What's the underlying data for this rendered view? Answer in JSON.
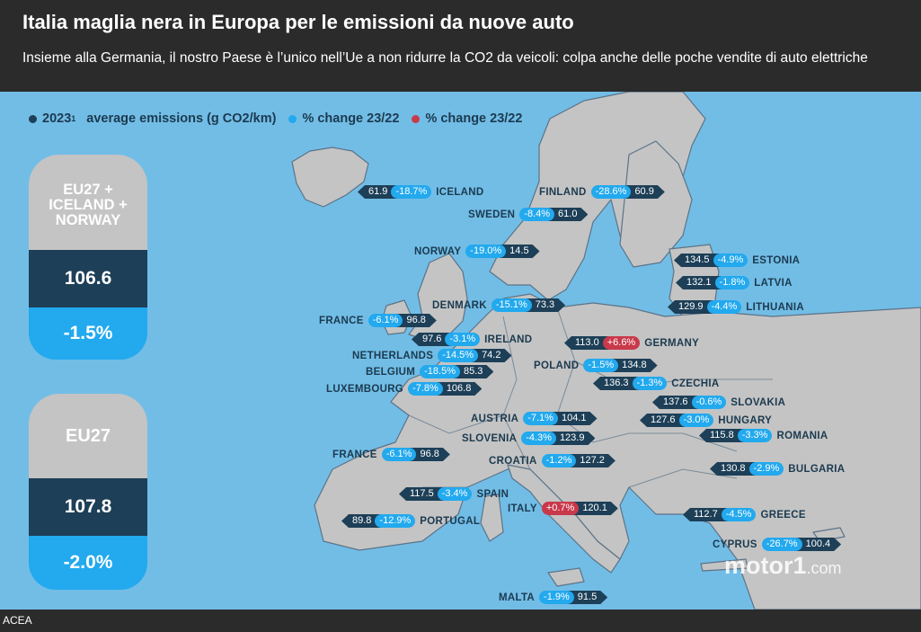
{
  "title": "Italia maglia nera in Europa per le emissioni da nuove auto",
  "subtitle": "Insieme alla Germania, il nostro Paese è l’unico nell’Ue a non ridurre la CO2 da veicoli: colpa anche delle poche vendite di auto elettriche",
  "source": "ACEA",
  "watermark": {
    "brand": "motor1",
    "suffix": ".com"
  },
  "legend": {
    "year": "2023",
    "year_sup": "1",
    "emissions": "average emissions (g CO2/km)",
    "change_decrease": "% change 23/22",
    "change_increase": "% change 23/22"
  },
  "colors": {
    "dark": "#1d3f57",
    "blue": "#22a9ee",
    "red": "#c9394a",
    "sea": "#72bde6",
    "land": "#c4c4c4"
  },
  "panels": [
    {
      "title": "EU27 + ICELAND + NORWAY",
      "value": "106.6",
      "change": "-1.5%"
    },
    {
      "title": "EU27",
      "value": "107.8",
      "change": "-2.0%"
    }
  ],
  "chart_data": {
    "type": "table",
    "columns": [
      "country",
      "avg_emissions_g_co2_km_2023",
      "pct_change_23_22"
    ],
    "rows": [
      {
        "country": "ICELAND",
        "value": "61.9",
        "change": "-18.7%",
        "dir": "down"
      },
      {
        "country": "FINLAND",
        "value": "60.9",
        "change": "-28.6%",
        "dir": "down"
      },
      {
        "country": "SWEDEN",
        "value": "61.0",
        "change": "-8.4%",
        "dir": "down"
      },
      {
        "country": "NORWAY",
        "value": "14.5",
        "change": "-19.0%",
        "dir": "down"
      },
      {
        "country": "ESTONIA",
        "value": "134.5",
        "change": "-4.9%",
        "dir": "down"
      },
      {
        "country": "LATVIA",
        "value": "132.1",
        "change": "-1.8%",
        "dir": "down"
      },
      {
        "country": "LITHUANIA",
        "value": "129.9",
        "change": "-4.4%",
        "dir": "down"
      },
      {
        "country": "DENMARK",
        "value": "73.3",
        "change": "-15.1%",
        "dir": "down"
      },
      {
        "country": "FRANCE",
        "value": "96.8",
        "change": "-6.1%",
        "dir": "down"
      },
      {
        "country": "IRELAND",
        "value": "97.6",
        "change": "-3.1%",
        "dir": "down"
      },
      {
        "country": "GERMANY",
        "value": "113.0",
        "change": "+6.6%",
        "dir": "up"
      },
      {
        "country": "NETHERLANDS",
        "value": "74.2",
        "change": "-14.5%",
        "dir": "down"
      },
      {
        "country": "BELGIUM",
        "value": "85.3",
        "change": "-18.5%",
        "dir": "down"
      },
      {
        "country": "POLAND",
        "value": "134.8",
        "change": "-1.5%",
        "dir": "down"
      },
      {
        "country": "LUXEMBOURG",
        "value": "106.8",
        "change": "-7.8%",
        "dir": "down"
      },
      {
        "country": "CZECHIA",
        "value": "136.3",
        "change": "-1.3%",
        "dir": "down"
      },
      {
        "country": "SLOVAKIA",
        "value": "137.6",
        "change": "-0.6%",
        "dir": "down"
      },
      {
        "country": "AUSTRIA",
        "value": "104.1",
        "change": "-7.1%",
        "dir": "down"
      },
      {
        "country": "HUNGARY",
        "value": "127.6",
        "change": "-3.0%",
        "dir": "down"
      },
      {
        "country": "SLOVENIA",
        "value": "123.9",
        "change": "-4.3%",
        "dir": "down"
      },
      {
        "country": "ROMANIA",
        "value": "115.8",
        "change": "-3.3%",
        "dir": "down"
      },
      {
        "country": "FRANCE",
        "value": "96.8",
        "change": "-6.1%",
        "dir": "down"
      },
      {
        "country": "CROATIA",
        "value": "127.2",
        "change": "-1.2%",
        "dir": "down"
      },
      {
        "country": "BULGARIA",
        "value": "130.8",
        "change": "-2.9%",
        "dir": "down"
      },
      {
        "country": "SPAIN",
        "value": "117.5",
        "change": "-3.4%",
        "dir": "down"
      },
      {
        "country": "ITALY",
        "value": "120.1",
        "change": "+0.7%",
        "dir": "up"
      },
      {
        "country": "GREECE",
        "value": "112.7",
        "change": "-4.5%",
        "dir": "down"
      },
      {
        "country": "PORTUGAL",
        "value": "89.8",
        "change": "-12.9%",
        "dir": "down"
      },
      {
        "country": "CYPRUS",
        "value": "100.4",
        "change": "-26.7%",
        "dir": "down"
      },
      {
        "country": "MALTA",
        "value": "91.5",
        "change": "-1.9%",
        "dir": "down"
      }
    ]
  }
}
